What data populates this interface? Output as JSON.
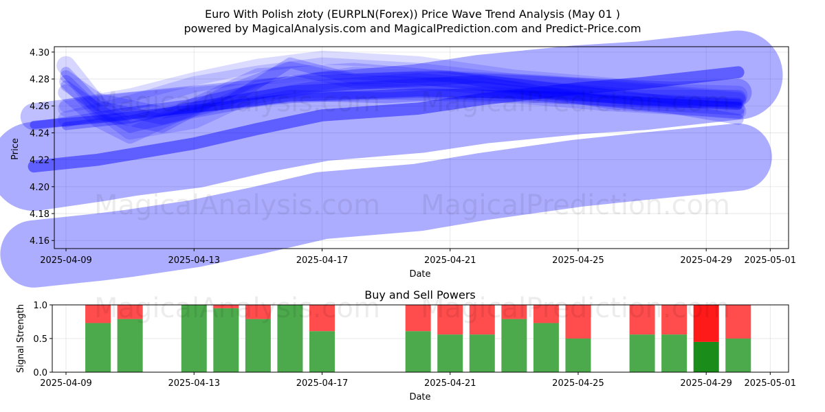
{
  "figure": {
    "title_line1": "Euro With Polish złoty (EURPLN(Forex)) Price Wave Trend Analysis (May 01 )",
    "title_line2": "powered by MagicalAnalysis.com and MagicalPrediction.com and Predict-Price.com",
    "watermarks": [
      "MagicalAnalysis.com",
      "MagicalPrediction.com"
    ]
  },
  "chart_data": [
    {
      "type": "line",
      "title": "",
      "xlabel": "Date",
      "ylabel": "Price",
      "ylim": [
        4.154,
        4.304
      ],
      "xlim": [
        "2025-04-08",
        "2025-05-01"
      ],
      "x_ticks": [
        "2025-04-09",
        "2025-04-13",
        "2025-04-17",
        "2025-04-21",
        "2025-04-25",
        "2025-04-29",
        "2025-05-01"
      ],
      "y_ticks": [
        4.16,
        4.18,
        4.2,
        4.22,
        4.24,
        4.26,
        4.28,
        4.3
      ],
      "grid": true,
      "band_color": "#0000ff",
      "bands": [
        {
          "x": [
            "2025-04-08",
            "2025-04-10",
            "2025-04-11",
            "2025-04-13",
            "2025-04-15",
            "2025-04-17",
            "2025-04-20",
            "2025-04-22",
            "2025-04-25",
            "2025-04-27",
            "2025-04-30"
          ],
          "y": [
            4.15,
            4.155,
            4.158,
            4.165,
            4.175,
            4.186,
            4.192,
            4.2,
            4.21,
            4.215,
            4.222
          ],
          "width": 0.05,
          "opacity": 0.32
        },
        {
          "x": [
            "2025-04-08",
            "2025-04-10",
            "2025-04-11",
            "2025-04-13",
            "2025-04-15",
            "2025-04-17",
            "2025-04-20",
            "2025-04-22",
            "2025-04-25",
            "2025-04-27",
            "2025-04-30"
          ],
          "y": [
            4.215,
            4.222,
            4.226,
            4.232,
            4.243,
            4.252,
            4.258,
            4.265,
            4.272,
            4.275,
            4.283
          ],
          "width": 0.066,
          "opacity": 0.32
        },
        {
          "x": [
            "2025-04-08",
            "2025-04-10",
            "2025-04-11",
            "2025-04-13",
            "2025-04-15",
            "2025-04-17",
            "2025-04-20",
            "2025-04-22",
            "2025-04-25",
            "2025-04-27",
            "2025-04-30"
          ],
          "y": [
            4.215,
            4.22,
            4.224,
            4.232,
            4.243,
            4.253,
            4.258,
            4.265,
            4.273,
            4.277,
            4.285
          ],
          "width": 0.009,
          "opacity": 0.45
        },
        {
          "x": [
            "2025-04-08",
            "2025-04-10",
            "2025-04-13",
            "2025-04-16",
            "2025-04-20",
            "2025-04-24",
            "2025-04-28",
            "2025-04-30"
          ],
          "y": [
            4.246,
            4.25,
            4.258,
            4.266,
            4.27,
            4.268,
            4.262,
            4.26
          ],
          "width": 0.006,
          "opacity": 0.4
        },
        {
          "x": [
            "2025-04-08",
            "2025-04-10",
            "2025-04-13",
            "2025-04-16",
            "2025-04-20",
            "2025-04-24",
            "2025-04-28",
            "2025-04-30"
          ],
          "y": [
            4.252,
            4.258,
            4.265,
            4.272,
            4.276,
            4.272,
            4.268,
            4.27
          ],
          "width": 0.02,
          "opacity": 0.25
        },
        {
          "x": [
            "2025-04-09",
            "2025-04-10",
            "2025-04-12",
            "2025-04-14",
            "2025-04-16",
            "2025-04-18",
            "2025-04-21",
            "2025-04-24",
            "2025-04-27",
            "2025-04-30"
          ],
          "y": [
            4.285,
            4.26,
            4.25,
            4.262,
            4.292,
            4.28,
            4.282,
            4.27,
            4.265,
            4.262
          ],
          "width": 0.008,
          "opacity": 0.22
        },
        {
          "x": [
            "2025-04-09",
            "2025-04-10",
            "2025-04-12",
            "2025-04-14",
            "2025-04-16",
            "2025-04-18",
            "2025-04-21",
            "2025-04-24",
            "2025-04-27",
            "2025-04-30"
          ],
          "y": [
            4.278,
            4.255,
            4.245,
            4.27,
            4.288,
            4.278,
            4.276,
            4.268,
            4.262,
            4.258
          ],
          "width": 0.01,
          "opacity": 0.2
        },
        {
          "x": [
            "2025-04-09",
            "2025-04-10",
            "2025-04-11",
            "2025-04-13",
            "2025-04-15",
            "2025-04-18",
            "2025-04-21",
            "2025-04-24",
            "2025-04-27",
            "2025-04-30"
          ],
          "y": [
            4.27,
            4.25,
            4.238,
            4.26,
            4.282,
            4.286,
            4.28,
            4.272,
            4.266,
            4.266
          ],
          "width": 0.012,
          "opacity": 0.18
        },
        {
          "x": [
            "2025-04-09",
            "2025-04-10",
            "2025-04-11",
            "2025-04-13",
            "2025-04-15",
            "2025-04-18",
            "2025-04-21",
            "2025-04-24",
            "2025-04-27",
            "2025-04-30"
          ],
          "y": [
            4.29,
            4.26,
            4.242,
            4.25,
            4.272,
            4.282,
            4.279,
            4.276,
            4.27,
            4.268
          ],
          "width": 0.014,
          "opacity": 0.16
        },
        {
          "x": [
            "2025-04-09",
            "2025-04-11",
            "2025-04-13",
            "2025-04-15",
            "2025-04-17",
            "2025-04-20",
            "2025-04-23",
            "2025-04-26",
            "2025-04-28",
            "2025-04-30"
          ],
          "y": [
            4.25,
            4.262,
            4.276,
            4.284,
            4.29,
            4.286,
            4.278,
            4.272,
            4.268,
            4.264
          ],
          "width": 0.012,
          "opacity": 0.15
        },
        {
          "x": [
            "2025-04-09",
            "2025-04-11",
            "2025-04-13",
            "2025-04-15",
            "2025-04-17",
            "2025-04-20",
            "2025-04-23",
            "2025-04-26",
            "2025-04-28",
            "2025-04-30"
          ],
          "y": [
            4.26,
            4.268,
            4.28,
            4.29,
            4.296,
            4.292,
            4.282,
            4.276,
            4.27,
            4.266
          ],
          "width": 0.01,
          "opacity": 0.14
        },
        {
          "x": [
            "2025-04-09",
            "2025-04-10",
            "2025-04-12",
            "2025-04-14",
            "2025-04-17",
            "2025-04-20",
            "2025-04-23",
            "2025-04-26",
            "2025-04-30"
          ],
          "y": [
            4.282,
            4.265,
            4.255,
            4.262,
            4.275,
            4.28,
            4.274,
            4.262,
            4.255
          ],
          "width": 0.009,
          "opacity": 0.2
        },
        {
          "x": [
            "2025-04-09",
            "2025-04-10",
            "2025-04-11",
            "2025-04-13",
            "2025-04-16",
            "2025-04-19",
            "2025-04-22",
            "2025-04-25",
            "2025-04-28",
            "2025-04-30"
          ],
          "y": [
            4.275,
            4.258,
            4.244,
            4.255,
            4.268,
            4.266,
            4.27,
            4.266,
            4.258,
            4.25
          ],
          "width": 0.008,
          "opacity": 0.22
        },
        {
          "x": [
            "2025-04-09",
            "2025-04-11",
            "2025-04-13",
            "2025-04-16",
            "2025-04-19",
            "2025-04-22",
            "2025-04-25",
            "2025-04-28",
            "2025-04-30"
          ],
          "y": [
            4.245,
            4.25,
            4.26,
            4.272,
            4.276,
            4.28,
            4.272,
            4.264,
            4.262
          ],
          "width": 0.006,
          "opacity": 0.3
        },
        {
          "x": [
            "2025-04-09",
            "2025-04-11",
            "2025-04-14",
            "2025-04-17",
            "2025-04-20",
            "2025-04-23",
            "2025-04-26",
            "2025-04-29",
            "2025-04-30"
          ],
          "y": [
            4.258,
            4.264,
            4.27,
            4.272,
            4.27,
            4.268,
            4.262,
            4.258,
            4.256
          ],
          "width": 0.012,
          "opacity": 0.15
        }
      ]
    },
    {
      "type": "bar",
      "title": "Buy and Sell Powers",
      "xlabel": "Date",
      "ylabel": "Signal Strength",
      "ylim": [
        0,
        1.0
      ],
      "y_ticks": [
        0.0,
        0.5,
        1.0
      ],
      "x_ticks": [
        "2025-04-09",
        "2025-04-13",
        "2025-04-17",
        "2025-04-21",
        "2025-04-25",
        "2025-04-29",
        "2025-05-01"
      ],
      "grid": true,
      "buy_color": "#4caa4c",
      "sell_color": "#ff4c4c",
      "highlight_buy_color": "#1a8c1a",
      "highlight_sell_color": "#ff1a1a",
      "bars": [
        {
          "date": "2025-04-10",
          "buy": 0.73,
          "sell": 0.27
        },
        {
          "date": "2025-04-11",
          "buy": 0.79,
          "sell": 0.21
        },
        {
          "date": "2025-04-13",
          "buy": 1.0,
          "sell": 0.0
        },
        {
          "date": "2025-04-14",
          "buy": 0.95,
          "sell": 0.05
        },
        {
          "date": "2025-04-15",
          "buy": 0.79,
          "sell": 0.21
        },
        {
          "date": "2025-04-16",
          "buy": 1.0,
          "sell": 0.0
        },
        {
          "date": "2025-04-17",
          "buy": 0.61,
          "sell": 0.39
        },
        {
          "date": "2025-04-20",
          "buy": 0.61,
          "sell": 0.39
        },
        {
          "date": "2025-04-21",
          "buy": 0.56,
          "sell": 0.44
        },
        {
          "date": "2025-04-22",
          "buy": 0.56,
          "sell": 0.44
        },
        {
          "date": "2025-04-23",
          "buy": 0.79,
          "sell": 0.21
        },
        {
          "date": "2025-04-24",
          "buy": 0.73,
          "sell": 0.27
        },
        {
          "date": "2025-04-25",
          "buy": 0.5,
          "sell": 0.5
        },
        {
          "date": "2025-04-27",
          "buy": 0.56,
          "sell": 0.44
        },
        {
          "date": "2025-04-28",
          "buy": 0.56,
          "sell": 0.44
        },
        {
          "date": "2025-04-29",
          "buy": 0.45,
          "sell": 0.55,
          "highlight": true
        },
        {
          "date": "2025-04-30",
          "buy": 0.5,
          "sell": 0.5
        }
      ]
    }
  ]
}
